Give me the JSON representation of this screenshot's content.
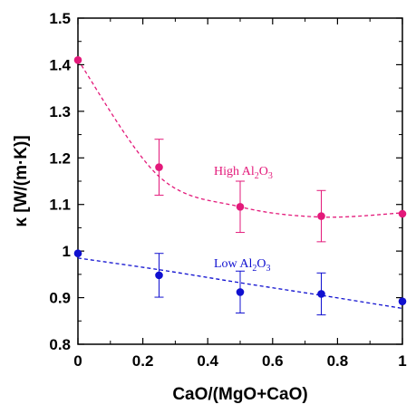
{
  "chart_data": {
    "type": "scatter",
    "xlabel": "CaO/(MgO+CaO)",
    "ylabel": "κ [W/(m·K)]",
    "xlim": [
      0,
      1
    ],
    "ylim": [
      0.8,
      1.5
    ],
    "xticks": [
      "0",
      "0.2",
      "0.4",
      "0.6",
      "0.8",
      "1"
    ],
    "yticks": [
      "0.8",
      "0.9",
      "1",
      "1.1",
      "1.2",
      "1.3",
      "1.4",
      "1.5"
    ],
    "grid": false,
    "series": [
      {
        "name": "High Al2O3",
        "label_main": "High Al",
        "label_sub1": "2",
        "label_mid": "O",
        "label_sub2": "3",
        "color": "#e3197a",
        "x": [
          0,
          0.25,
          0.5,
          0.75,
          1
        ],
        "y": [
          1.41,
          1.18,
          1.095,
          1.075,
          1.08
        ],
        "err": [
          0,
          0.06,
          0.055,
          0.055,
          0
        ],
        "fit": [
          1.41,
          1.16,
          1.095,
          1.073,
          1.082
        ]
      },
      {
        "name": "Low Al2O3",
        "label_main": "Low Al",
        "label_sub1": "2",
        "label_mid": "O",
        "label_sub2": "3",
        "color": "#1010d0",
        "x": [
          0,
          0.25,
          0.5,
          0.75,
          1
        ],
        "y": [
          0.995,
          0.948,
          0.912,
          0.908,
          0.892
        ],
        "err": [
          0,
          0.047,
          0.045,
          0.045,
          0
        ],
        "fit": [
          0.985,
          0.96,
          0.932,
          0.905,
          0.877
        ]
      }
    ]
  }
}
